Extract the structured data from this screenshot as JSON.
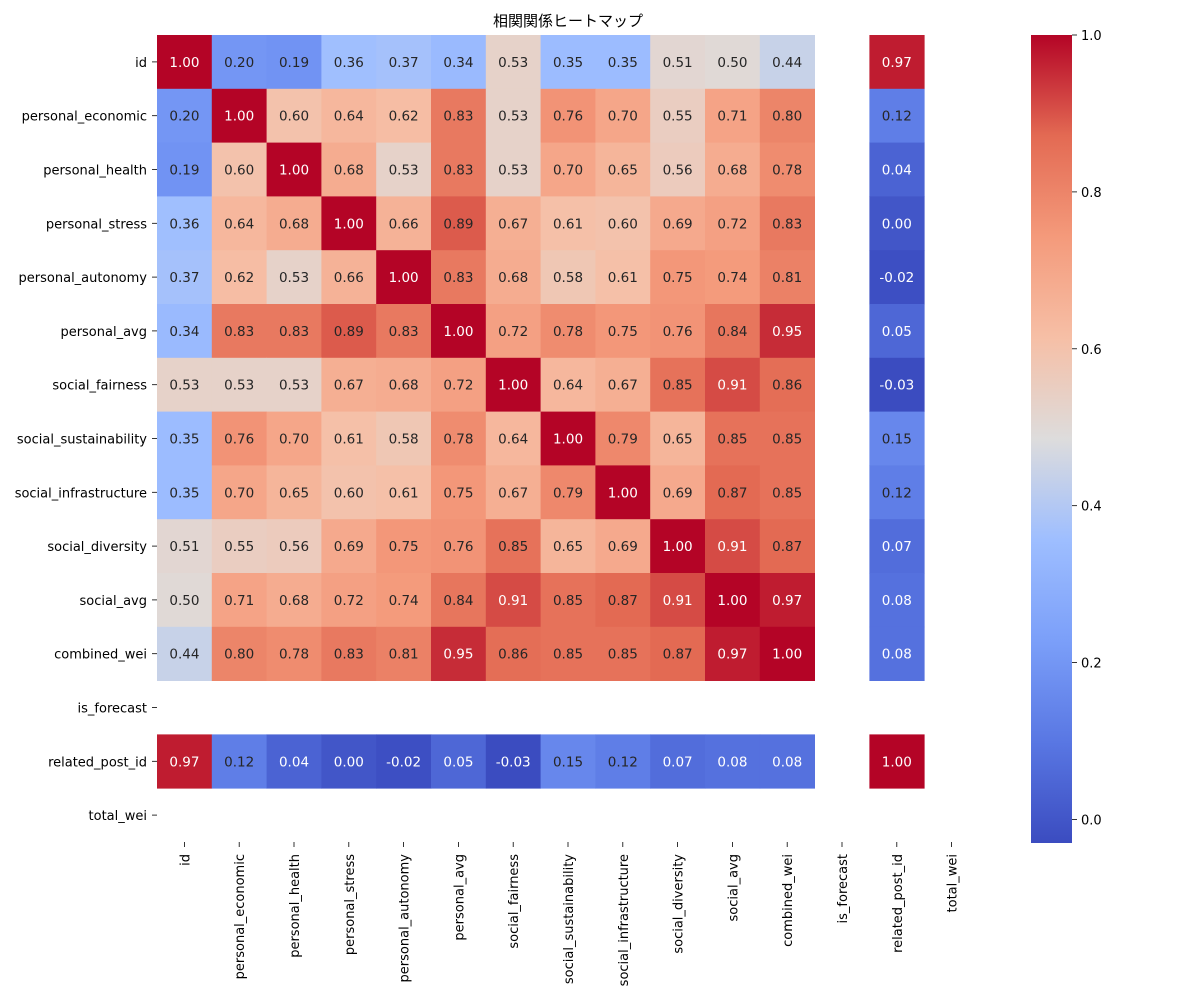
{
  "chart_data": {
    "type": "heatmap",
    "title": "相関関係ヒートマップ",
    "labels": [
      "id",
      "personal_economic",
      "personal_health",
      "personal_stress",
      "personal_autonomy",
      "personal_avg",
      "social_fairness",
      "social_sustainability",
      "social_infrastructure",
      "social_diversity",
      "social_avg",
      "combined_wei",
      "is_forecast",
      "related_post_id",
      "total_wei"
    ],
    "matrix": [
      [
        1.0,
        0.2,
        0.19,
        0.36,
        0.37,
        0.34,
        0.53,
        0.35,
        0.35,
        0.51,
        0.5,
        0.44,
        null,
        0.97,
        null
      ],
      [
        0.2,
        1.0,
        0.6,
        0.64,
        0.62,
        0.83,
        0.53,
        0.76,
        0.7,
        0.55,
        0.71,
        0.8,
        null,
        0.12,
        null
      ],
      [
        0.19,
        0.6,
        1.0,
        0.68,
        0.53,
        0.83,
        0.53,
        0.7,
        0.65,
        0.56,
        0.68,
        0.78,
        null,
        0.04,
        null
      ],
      [
        0.36,
        0.64,
        0.68,
        1.0,
        0.66,
        0.89,
        0.67,
        0.61,
        0.6,
        0.69,
        0.72,
        0.83,
        null,
        0.0,
        null
      ],
      [
        0.37,
        0.62,
        0.53,
        0.66,
        1.0,
        0.83,
        0.68,
        0.58,
        0.61,
        0.75,
        0.74,
        0.81,
        null,
        -0.02,
        null
      ],
      [
        0.34,
        0.83,
        0.83,
        0.89,
        0.83,
        1.0,
        0.72,
        0.78,
        0.75,
        0.76,
        0.84,
        0.95,
        null,
        0.05,
        null
      ],
      [
        0.53,
        0.53,
        0.53,
        0.67,
        0.68,
        0.72,
        1.0,
        0.64,
        0.67,
        0.85,
        0.91,
        0.86,
        null,
        -0.03,
        null
      ],
      [
        0.35,
        0.76,
        0.7,
        0.61,
        0.58,
        0.78,
        0.64,
        1.0,
        0.79,
        0.65,
        0.85,
        0.85,
        null,
        0.15,
        null
      ],
      [
        0.35,
        0.7,
        0.65,
        0.6,
        0.61,
        0.75,
        0.67,
        0.79,
        1.0,
        0.69,
        0.87,
        0.85,
        null,
        0.12,
        null
      ],
      [
        0.51,
        0.55,
        0.56,
        0.69,
        0.75,
        0.76,
        0.85,
        0.65,
        0.69,
        1.0,
        0.91,
        0.87,
        null,
        0.07,
        null
      ],
      [
        0.5,
        0.71,
        0.68,
        0.72,
        0.74,
        0.84,
        0.91,
        0.85,
        0.87,
        0.91,
        1.0,
        0.97,
        null,
        0.08,
        null
      ],
      [
        0.44,
        0.8,
        0.78,
        0.83,
        0.81,
        0.95,
        0.86,
        0.85,
        0.85,
        0.87,
        0.97,
        1.0,
        null,
        0.08,
        null
      ],
      [
        null,
        null,
        null,
        null,
        null,
        null,
        null,
        null,
        null,
        null,
        null,
        null,
        null,
        null,
        null
      ],
      [
        0.97,
        0.12,
        0.04,
        0.0,
        -0.02,
        0.05,
        -0.03,
        0.15,
        0.12,
        0.07,
        0.08,
        0.08,
        null,
        1.0,
        null
      ],
      [
        null,
        null,
        null,
        null,
        null,
        null,
        null,
        null,
        null,
        null,
        null,
        null,
        null,
        null,
        null
      ]
    ],
    "colormap": "coolwarm",
    "vmin": -0.03,
    "vmax": 1.0,
    "colorbar_ticks": [
      "0.0",
      "0.2",
      "0.4",
      "0.6",
      "0.8",
      "1.0"
    ],
    "colorbar_tick_values": [
      0.0,
      0.2,
      0.4,
      0.6,
      0.8,
      1.0
    ],
    "value_format": "2 decimals"
  }
}
